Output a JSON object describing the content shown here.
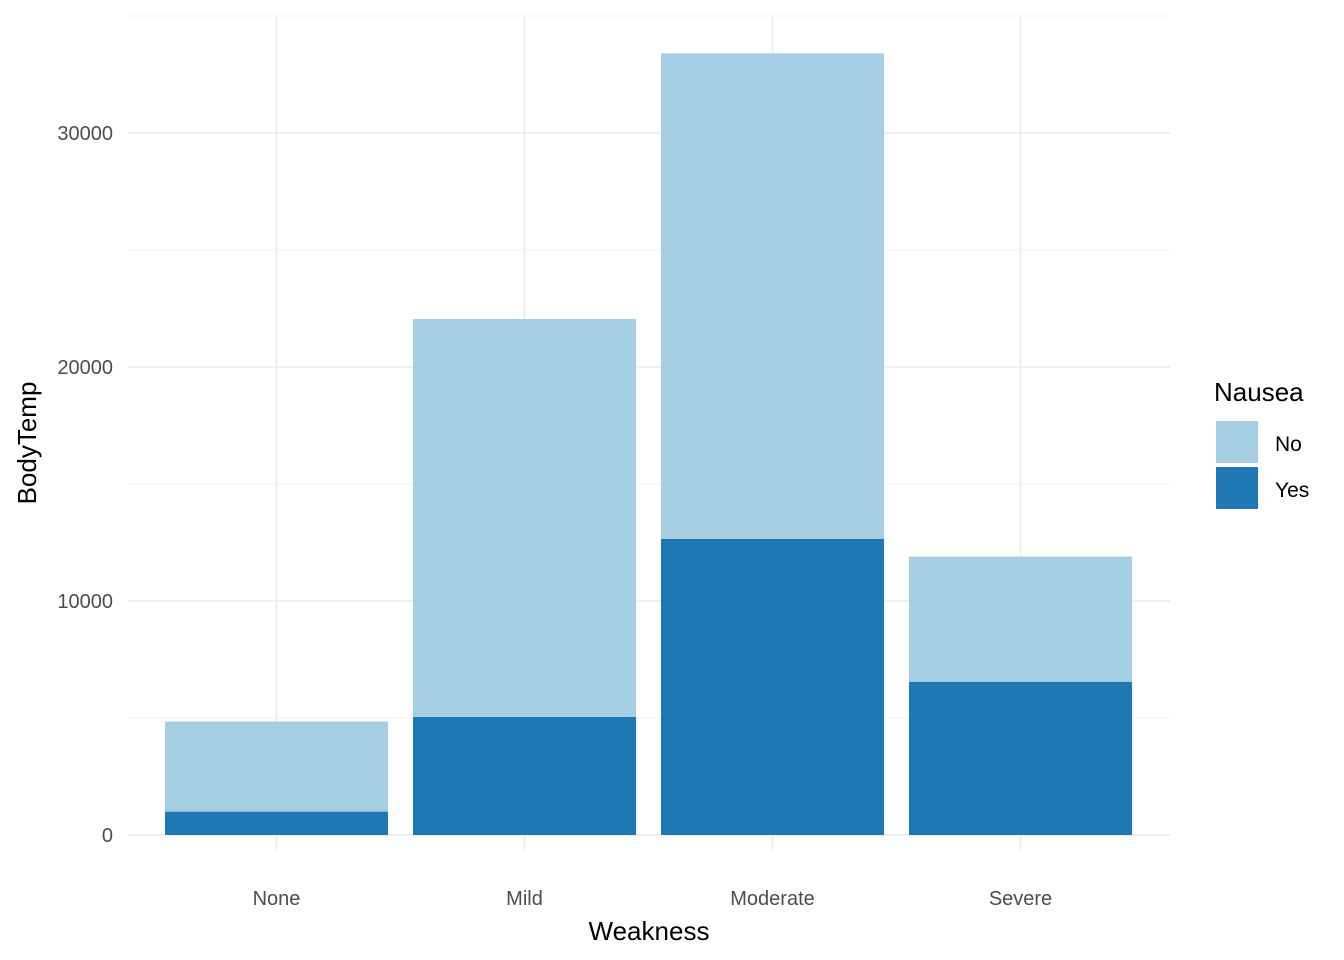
{
  "chart_data": {
    "type": "bar",
    "stacked": true,
    "categories": [
      "None",
      "Mild",
      "Moderate",
      "Severe"
    ],
    "series": [
      {
        "name": "Yes",
        "color": "#1f78b4",
        "values": [
          1000,
          5050,
          12650,
          6550
        ]
      },
      {
        "name": "No",
        "color": "#a6cee3",
        "values": [
          3850,
          17000,
          20750,
          5350
        ]
      }
    ],
    "xlabel": "Weakness",
    "ylabel": "BodyTemp",
    "ylim": [
      0,
      35000
    ],
    "yticks": [
      0,
      10000,
      20000,
      30000
    ],
    "ytick_labels": [
      "0",
      "10000",
      "20000",
      "30000"
    ],
    "grid": true,
    "legend": {
      "title": "Nausea",
      "position": "right",
      "entries": [
        {
          "label": "No",
          "color": "#a6cee3"
        },
        {
          "label": "Yes",
          "color": "#1f78b4"
        }
      ]
    }
  }
}
